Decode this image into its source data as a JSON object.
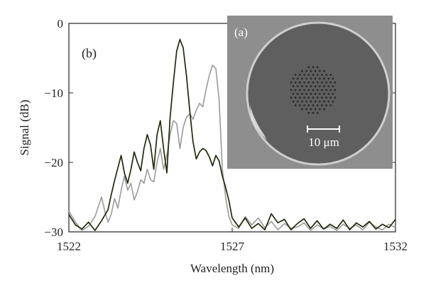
{
  "chart_data": {
    "type": "line",
    "panel_label": "(b)",
    "xlabel": "Wavelength (nm)",
    "ylabel": "Signal (dB)",
    "xlim": [
      1522,
      1532
    ],
    "ylim": [
      -30,
      0
    ],
    "xticks": [
      1522,
      1527,
      1532
    ],
    "yticks": [
      0,
      -10,
      -20,
      -30
    ],
    "grid": false,
    "legend": "none",
    "series": [
      {
        "color": "#1f2a0c",
        "points": [
          [
            1522.0,
            -27.5
          ],
          [
            1522.2,
            -29.0
          ],
          [
            1522.4,
            -29.6
          ],
          [
            1522.6,
            -28.6
          ],
          [
            1522.8,
            -29.8
          ],
          [
            1523.0,
            -28.4
          ],
          [
            1523.2,
            -26.8
          ],
          [
            1523.3,
            -24.6
          ],
          [
            1523.4,
            -22.6
          ],
          [
            1523.5,
            -20.8
          ],
          [
            1523.6,
            -19.0
          ],
          [
            1523.7,
            -21.5
          ],
          [
            1523.8,
            -23.0
          ],
          [
            1523.9,
            -21.0
          ],
          [
            1524.0,
            -18.5
          ],
          [
            1524.1,
            -20.0
          ],
          [
            1524.2,
            -21.2
          ],
          [
            1524.3,
            -18.0
          ],
          [
            1524.4,
            -16.0
          ],
          [
            1524.5,
            -17.5
          ],
          [
            1524.6,
            -21.0
          ],
          [
            1524.7,
            -16.0
          ],
          [
            1524.8,
            -14.0
          ],
          [
            1524.9,
            -18.0
          ],
          [
            1525.0,
            -21.5
          ],
          [
            1525.1,
            -13.5
          ],
          [
            1525.2,
            -8.5
          ],
          [
            1525.3,
            -4.0
          ],
          [
            1525.4,
            -2.3
          ],
          [
            1525.5,
            -3.5
          ],
          [
            1525.6,
            -7.5
          ],
          [
            1525.7,
            -12.5
          ],
          [
            1525.8,
            -17.0
          ],
          [
            1525.9,
            -19.5
          ],
          [
            1526.0,
            -18.5
          ],
          [
            1526.1,
            -18.0
          ],
          [
            1526.2,
            -18.3
          ],
          [
            1526.3,
            -19.2
          ],
          [
            1526.4,
            -20.5
          ],
          [
            1526.5,
            -19.0
          ],
          [
            1526.6,
            -19.8
          ],
          [
            1526.7,
            -22.0
          ],
          [
            1526.8,
            -23.6
          ],
          [
            1526.9,
            -25.5
          ],
          [
            1527.0,
            -28.0
          ],
          [
            1527.2,
            -29.3
          ],
          [
            1527.4,
            -28.0
          ],
          [
            1527.6,
            -29.5
          ],
          [
            1527.8,
            -28.8
          ],
          [
            1528.0,
            -29.7
          ],
          [
            1528.2,
            -27.4
          ],
          [
            1528.4,
            -28.7
          ],
          [
            1528.6,
            -28.2
          ],
          [
            1528.8,
            -29.7
          ],
          [
            1529.0,
            -28.8
          ],
          [
            1529.2,
            -28.1
          ],
          [
            1529.4,
            -29.5
          ],
          [
            1529.6,
            -28.4
          ],
          [
            1529.8,
            -29.6
          ],
          [
            1530.0,
            -28.9
          ],
          [
            1530.2,
            -29.5
          ],
          [
            1530.4,
            -28.3
          ],
          [
            1530.6,
            -29.7
          ],
          [
            1530.8,
            -28.7
          ],
          [
            1531.0,
            -29.3
          ],
          [
            1531.2,
            -28.5
          ],
          [
            1531.4,
            -29.6
          ],
          [
            1531.6,
            -28.9
          ],
          [
            1531.8,
            -29.4
          ],
          [
            1532.0,
            -28.2
          ]
        ]
      },
      {
        "color": "#9a9a9a",
        "points": [
          [
            1522.0,
            -27.0
          ],
          [
            1522.2,
            -28.6
          ],
          [
            1522.4,
            -29.8
          ],
          [
            1522.6,
            -29.2
          ],
          [
            1522.8,
            -27.8
          ],
          [
            1523.0,
            -25.0
          ],
          [
            1523.1,
            -27.0
          ],
          [
            1523.2,
            -28.6
          ],
          [
            1523.3,
            -27.4
          ],
          [
            1523.4,
            -25.2
          ],
          [
            1523.5,
            -26.6
          ],
          [
            1523.6,
            -24.0
          ],
          [
            1523.7,
            -22.0
          ],
          [
            1523.8,
            -24.0
          ],
          [
            1523.9,
            -23.0
          ],
          [
            1524.0,
            -25.4
          ],
          [
            1524.1,
            -24.2
          ],
          [
            1524.2,
            -22.5
          ],
          [
            1524.3,
            -23.0
          ],
          [
            1524.4,
            -21.0
          ],
          [
            1524.5,
            -22.5
          ],
          [
            1524.6,
            -22.8
          ],
          [
            1524.7,
            -20.0
          ],
          [
            1524.8,
            -18.0
          ],
          [
            1524.9,
            -21.0
          ],
          [
            1525.0,
            -19.0
          ],
          [
            1525.1,
            -16.0
          ],
          [
            1525.2,
            -14.0
          ],
          [
            1525.3,
            -14.4
          ],
          [
            1525.4,
            -18.0
          ],
          [
            1525.5,
            -15.0
          ],
          [
            1525.6,
            -13.5
          ],
          [
            1525.7,
            -13.0
          ],
          [
            1525.8,
            -13.8
          ],
          [
            1525.9,
            -12.5
          ],
          [
            1526.0,
            -11.5
          ],
          [
            1526.1,
            -12.0
          ],
          [
            1526.2,
            -9.5
          ],
          [
            1526.3,
            -7.5
          ],
          [
            1526.4,
            -6.0
          ],
          [
            1526.5,
            -6.5
          ],
          [
            1526.6,
            -11.0
          ],
          [
            1526.7,
            -21.0
          ],
          [
            1526.8,
            -25.0
          ],
          [
            1526.9,
            -27.8
          ],
          [
            1527.0,
            -29.0
          ],
          [
            1527.2,
            -29.5
          ],
          [
            1527.4,
            -27.8
          ],
          [
            1527.6,
            -29.0
          ],
          [
            1527.8,
            -28.0
          ],
          [
            1528.0,
            -29.4
          ],
          [
            1528.2,
            -28.5
          ],
          [
            1528.4,
            -29.7
          ],
          [
            1528.6,
            -28.8
          ],
          [
            1528.8,
            -29.5
          ],
          [
            1529.0,
            -29.3
          ],
          [
            1529.2,
            -28.7
          ],
          [
            1529.4,
            -29.8
          ],
          [
            1529.6,
            -29.0
          ],
          [
            1529.8,
            -29.6
          ],
          [
            1530.0,
            -29.2
          ],
          [
            1530.2,
            -29.8
          ],
          [
            1530.4,
            -28.9
          ],
          [
            1530.6,
            -29.5
          ],
          [
            1530.8,
            -29.0
          ],
          [
            1531.0,
            -29.7
          ],
          [
            1531.2,
            -28.6
          ],
          [
            1531.4,
            -29.3
          ],
          [
            1531.6,
            -29.7
          ],
          [
            1531.8,
            -28.9
          ],
          [
            1532.0,
            -29.4
          ]
        ]
      }
    ]
  },
  "inset": {
    "label": "(a)",
    "scale_bar_label": "10 μm",
    "background_color": "#8e8e8e",
    "fiber_color": "#5f5f5f",
    "hole_color": "#2a2a2a"
  }
}
